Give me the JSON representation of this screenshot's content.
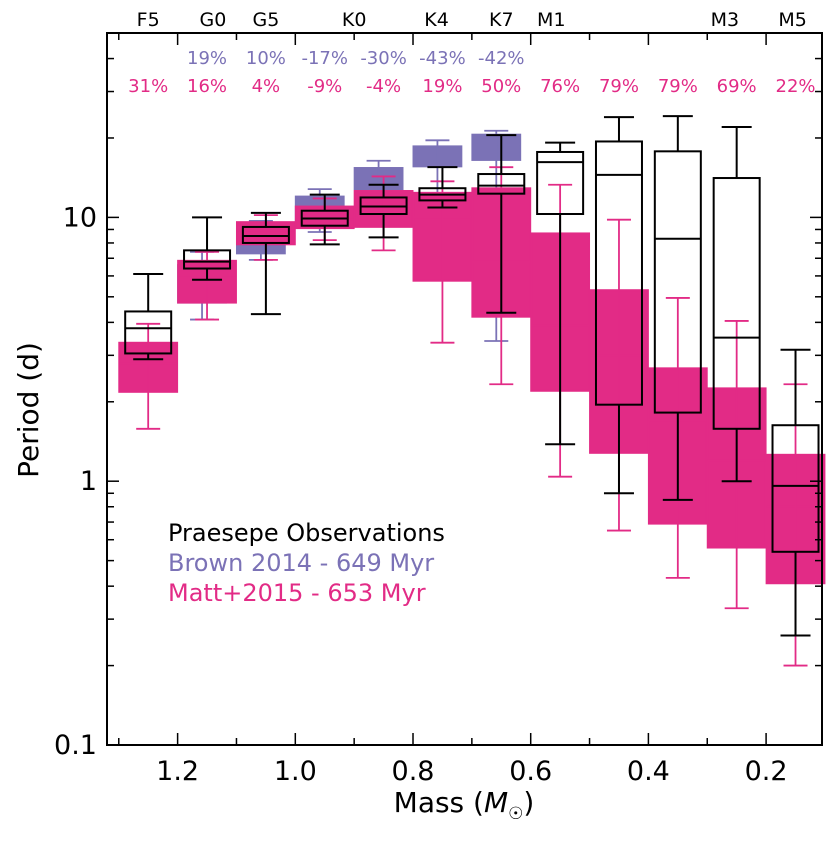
{
  "chart_data": {
    "type": "box",
    "title": "",
    "xlabel": "Mass (M☉)",
    "ylabel": "Period (d)",
    "xlim": [
      1.32,
      0.105
    ],
    "ylim": [
      0.1,
      50
    ],
    "y_scale": "log",
    "x_reversed": true,
    "x_ticks": [
      1.2,
      1.0,
      0.8,
      0.6,
      0.4,
      0.2
    ],
    "x_tick_labels": [
      "1.2",
      "1.0",
      "0.8",
      "0.6",
      "0.4",
      "0.2"
    ],
    "y_ticks": [
      0.1,
      1,
      10
    ],
    "y_tick_labels": [
      "0.1",
      "1",
      "10"
    ],
    "spectral_types": [
      {
        "label": "F5",
        "mass": 1.25
      },
      {
        "label": "G0",
        "mass": 1.14
      },
      {
        "label": "G5",
        "mass": 1.05
      },
      {
        "label": "K0",
        "mass": 0.9
      },
      {
        "label": "K4",
        "mass": 0.76
      },
      {
        "label": "K7",
        "mass": 0.65
      },
      {
        "label": "M1",
        "mass": 0.565
      },
      {
        "label": "M3",
        "mass": 0.27
      },
      {
        "label": "M5",
        "mass": 0.155
      }
    ],
    "brown_pct": [
      {
        "mass": 1.15,
        "label": "19%"
      },
      {
        "mass": 1.05,
        "label": "10%"
      },
      {
        "mass": 0.95,
        "label": "-17%"
      },
      {
        "mass": 0.85,
        "label": "-30%"
      },
      {
        "mass": 0.75,
        "label": "-43%"
      },
      {
        "mass": 0.65,
        "label": "-42%"
      }
    ],
    "matt_pct": [
      {
        "mass": 1.25,
        "label": "31%"
      },
      {
        "mass": 1.15,
        "label": "16%"
      },
      {
        "mass": 1.05,
        "label": "4%"
      },
      {
        "mass": 0.95,
        "label": "-9%"
      },
      {
        "mass": 0.85,
        "label": "-4%"
      },
      {
        "mass": 0.75,
        "label": "19%"
      },
      {
        "mass": 0.65,
        "label": "50%"
      },
      {
        "mass": 0.55,
        "label": "76%"
      },
      {
        "mass": 0.45,
        "label": "79%"
      },
      {
        "mass": 0.35,
        "label": "79%"
      },
      {
        "mass": 0.25,
        "label": "69%"
      },
      {
        "mass": 0.15,
        "label": "22%"
      }
    ],
    "series": [
      {
        "name": "Praesepe Observations",
        "color": "#000000",
        "style": "outline",
        "boxes": [
          {
            "mass": 1.25,
            "whisker_low": 2.9,
            "q1": 3.05,
            "median": 3.8,
            "q3": 4.4,
            "whisker_high": 6.1
          },
          {
            "mass": 1.15,
            "whisker_low": 5.8,
            "q1": 6.4,
            "median": 6.8,
            "q3": 7.5,
            "whisker_high": 10.0
          },
          {
            "mass": 1.05,
            "whisker_low": 4.3,
            "q1": 8.0,
            "median": 8.5,
            "q3": 9.2,
            "whisker_high": 10.4
          },
          {
            "mass": 0.95,
            "whisker_low": 7.9,
            "q1": 9.3,
            "median": 9.9,
            "q3": 10.6,
            "whisker_high": 12.2
          },
          {
            "mass": 0.85,
            "whisker_low": 8.4,
            "q1": 10.3,
            "median": 11.0,
            "q3": 11.9,
            "whisker_high": 13.3
          },
          {
            "mass": 0.75,
            "whisker_low": 10.9,
            "q1": 11.6,
            "median": 12.2,
            "q3": 12.9,
            "whisker_high": 15.5
          },
          {
            "mass": 0.65,
            "whisker_low": 4.35,
            "q1": 12.3,
            "median": 13.2,
            "q3": 14.6,
            "whisker_high": 20.5
          },
          {
            "mass": 0.55,
            "whisker_low": 1.38,
            "q1": 10.3,
            "median": 16.2,
            "q3": 17.7,
            "whisker_high": 19.2
          },
          {
            "mass": 0.45,
            "whisker_low": 0.9,
            "q1": 1.95,
            "median": 14.5,
            "q3": 19.4,
            "whisker_high": 24.0
          },
          {
            "mass": 0.35,
            "whisker_low": 0.85,
            "q1": 1.82,
            "median": 8.3,
            "q3": 17.8,
            "whisker_high": 24.2
          },
          {
            "mass": 0.25,
            "whisker_low": 1.0,
            "q1": 1.58,
            "median": 3.5,
            "q3": 14.1,
            "whisker_high": 22.0
          },
          {
            "mass": 0.15,
            "whisker_low": 0.26,
            "q1": 0.54,
            "median": 0.96,
            "q3": 1.63,
            "whisker_high": 3.15
          }
        ]
      },
      {
        "name": "Brown 2014 - 649 Myr",
        "color": "#7b72b6",
        "style": "filled",
        "boxes": [
          {
            "mass": 1.15,
            "whisker_low": 4.1,
            "q1": 4.75,
            "median": 5.7,
            "q3": 6.6,
            "whisker_high": 7.4
          },
          {
            "mass": 1.05,
            "whisker_low": 6.9,
            "q1": 7.3,
            "median": 8.3,
            "q3": 9.1,
            "whisker_high": 9.7
          },
          {
            "mass": 0.95,
            "whisker_low": 8.8,
            "q1": 9.2,
            "median": 10.1,
            "q3": 12.0,
            "whisker_high": 12.8
          },
          {
            "mass": 0.85,
            "whisker_low": 11.7,
            "q1": 12.8,
            "median": 13.8,
            "q3": 15.4,
            "whisker_high": 16.4
          },
          {
            "mass": 0.75,
            "whisker_low": 10.8,
            "q1": 15.6,
            "median": 17.4,
            "q3": 18.6,
            "whisker_high": 19.6
          },
          {
            "mass": 0.65,
            "whisker_low": 3.4,
            "q1": 16.5,
            "median": 18.9,
            "q3": 20.6,
            "whisker_high": 21.3
          }
        ]
      },
      {
        "name": "Matt+2015 - 653 Myr",
        "color": "#e22b86",
        "style": "filled",
        "boxes": [
          {
            "mass": 1.25,
            "whisker_low": 1.58,
            "q1": 2.18,
            "median": 2.8,
            "q3": 3.35,
            "whisker_high": 3.95
          },
          {
            "mass": 1.15,
            "whisker_low": 4.1,
            "q1": 4.75,
            "median": 6.0,
            "q3": 6.85,
            "whisker_high": 7.4
          },
          {
            "mass": 1.05,
            "whisker_low": 6.9,
            "q1": 7.9,
            "median": 8.9,
            "q3": 9.6,
            "whisker_high": 10.2
          },
          {
            "mass": 0.95,
            "whisker_low": 8.2,
            "q1": 9.1,
            "median": 9.8,
            "q3": 11.0,
            "whisker_high": 11.8
          },
          {
            "mass": 0.85,
            "whisker_low": 7.5,
            "q1": 9.2,
            "median": 10.8,
            "q3": 12.6,
            "whisker_high": 14.3
          },
          {
            "mass": 0.75,
            "whisker_low": 3.35,
            "q1": 5.75,
            "median": 10.0,
            "q3": 12.4,
            "whisker_high": 13.7
          },
          {
            "mass": 0.65,
            "whisker_low": 2.33,
            "q1": 4.2,
            "median": 6.8,
            "q3": 12.9,
            "whisker_high": 15.5
          },
          {
            "mass": 0.55,
            "whisker_low": 1.04,
            "q1": 2.2,
            "median": 3.9,
            "q3": 8.7,
            "whisker_high": 13.3
          },
          {
            "mass": 0.45,
            "whisker_low": 0.65,
            "q1": 1.28,
            "median": 3.0,
            "q3": 5.3,
            "whisker_high": 9.8
          },
          {
            "mass": 0.35,
            "whisker_low": 0.43,
            "q1": 0.69,
            "median": 1.7,
            "q3": 2.68,
            "whisker_high": 4.95
          },
          {
            "mass": 0.25,
            "whisker_low": 0.33,
            "q1": 0.56,
            "median": 1.2,
            "q3": 2.25,
            "whisker_high": 4.05
          },
          {
            "mass": 0.15,
            "whisker_low": 0.2,
            "q1": 0.41,
            "median": 0.8,
            "q3": 1.26,
            "whisker_high": 2.33
          }
        ]
      }
    ]
  }
}
